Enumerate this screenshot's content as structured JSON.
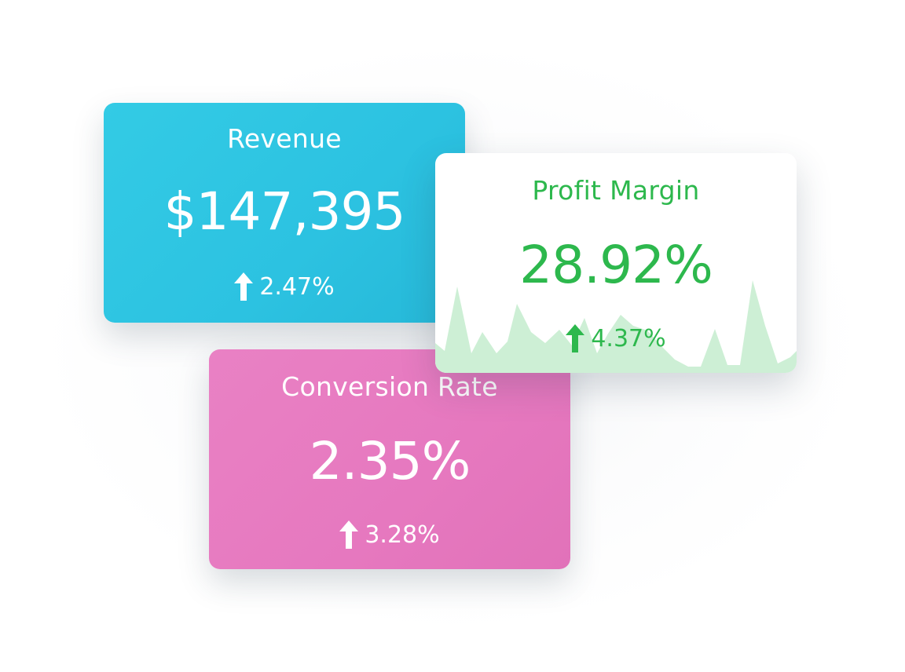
{
  "cards": {
    "revenue": {
      "label": "Revenue",
      "value": "$147,395",
      "change": "2.47%",
      "trend_icon": "arrow-up-icon",
      "color": "#2ec5e2"
    },
    "profit_margin": {
      "label": "Profit Margin",
      "value": "28.92%",
      "change": "4.37%",
      "trend_icon": "arrow-up-icon",
      "color": "#2db84d",
      "sparkline_color": "#cdefd5"
    },
    "conversion_rate": {
      "label": "Conversion Rate",
      "value": "2.35%",
      "change": "3.28%",
      "trend_icon": "arrow-up-icon",
      "color": "#e67bc0"
    }
  }
}
